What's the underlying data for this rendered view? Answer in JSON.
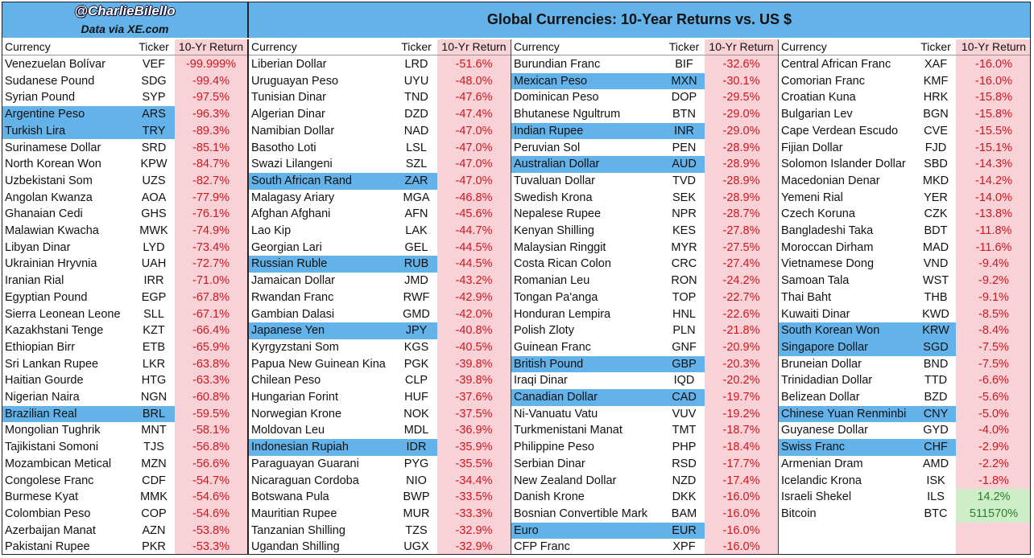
{
  "header": {
    "handle": "@CharlieBilello",
    "source": "Data via XE.com",
    "title": "Global Currencies: 10-Year Returns vs. US $"
  },
  "columns": {
    "currency": "Currency",
    "ticker": "Ticker",
    "return": "10-Yr Return"
  },
  "colors": {
    "highlight": "#63b3ea",
    "return_bg": "#f9d2d8",
    "positive_bg": "#cdeec6"
  },
  "groups": [
    {
      "rows": [
        {
          "currency": "Venezuelan Bolívar",
          "ticker": "VEF",
          "return": "-99.999%"
        },
        {
          "currency": "Sudanese Pound",
          "ticker": "SDG",
          "return": "-99.4%"
        },
        {
          "currency": "Syrian Pound",
          "ticker": "SYP",
          "return": "-97.5%"
        },
        {
          "currency": "Argentine Peso",
          "ticker": "ARS",
          "return": "-96.3%",
          "highlight": true
        },
        {
          "currency": "Turkish Lira",
          "ticker": "TRY",
          "return": "-89.3%",
          "highlight": true
        },
        {
          "currency": "Surinamese Dollar",
          "ticker": "SRD",
          "return": "-85.1%"
        },
        {
          "currency": "North Korean Won",
          "ticker": "KPW",
          "return": "-84.7%"
        },
        {
          "currency": "Uzbekistani Som",
          "ticker": "UZS",
          "return": "-82.7%"
        },
        {
          "currency": "Angolan Kwanza",
          "ticker": "AOA",
          "return": "-77.9%"
        },
        {
          "currency": "Ghanaian Cedi",
          "ticker": "GHS",
          "return": "-76.1%"
        },
        {
          "currency": "Malawian Kwacha",
          "ticker": "MWK",
          "return": "-74.9%"
        },
        {
          "currency": "Libyan Dinar",
          "ticker": "LYD",
          "return": "-73.4%"
        },
        {
          "currency": "Ukrainian Hryvnia",
          "ticker": "UAH",
          "return": "-72.7%"
        },
        {
          "currency": "Iranian Rial",
          "ticker": "IRR",
          "return": "-71.0%"
        },
        {
          "currency": "Egyptian Pound",
          "ticker": "EGP",
          "return": "-67.8%"
        },
        {
          "currency": "Sierra Leonean Leone",
          "ticker": "SLL",
          "return": "-67.1%"
        },
        {
          "currency": "Kazakhstani Tenge",
          "ticker": "KZT",
          "return": "-66.4%"
        },
        {
          "currency": "Ethiopian Birr",
          "ticker": "ETB",
          "return": "-65.9%"
        },
        {
          "currency": "Sri Lankan Rupee",
          "ticker": "LKR",
          "return": "-63.8%"
        },
        {
          "currency": "Haitian Gourde",
          "ticker": "HTG",
          "return": "-63.3%"
        },
        {
          "currency": "Nigerian Naira",
          "ticker": "NGN",
          "return": "-60.8%"
        },
        {
          "currency": "Brazilian Real",
          "ticker": "BRL",
          "return": "-59.5%",
          "highlight": true
        },
        {
          "currency": "Mongolian Tughrik",
          "ticker": "MNT",
          "return": "-58.1%"
        },
        {
          "currency": "Tajikistani Somoni",
          "ticker": "TJS",
          "return": "-56.8%"
        },
        {
          "currency": "Mozambican Metical",
          "ticker": "MZN",
          "return": "-56.6%"
        },
        {
          "currency": "Congolese Franc",
          "ticker": "CDF",
          "return": "-54.7%"
        },
        {
          "currency": "Burmese Kyat",
          "ticker": "MMK",
          "return": "-54.6%"
        },
        {
          "currency": "Colombian Peso",
          "ticker": "COP",
          "return": "-54.6%"
        },
        {
          "currency": "Azerbaijan Manat",
          "ticker": "AZN",
          "return": "-53.8%"
        },
        {
          "currency": "Pakistani Rupee",
          "ticker": "PKR",
          "return": "-53.3%"
        }
      ]
    },
    {
      "rows": [
        {
          "currency": "Liberian Dollar",
          "ticker": "LRD",
          "return": "-51.6%"
        },
        {
          "currency": "Uruguayan Peso",
          "ticker": "UYU",
          "return": "-48.0%"
        },
        {
          "currency": "Tunisian Dinar",
          "ticker": "TND",
          "return": "-47.6%"
        },
        {
          "currency": "Algerian Dinar",
          "ticker": "DZD",
          "return": "-47.4%"
        },
        {
          "currency": "Namibian Dollar",
          "ticker": "NAD",
          "return": "-47.0%"
        },
        {
          "currency": "Basotho Loti",
          "ticker": "LSL",
          "return": "-47.0%"
        },
        {
          "currency": "Swazi Lilangeni",
          "ticker": "SZL",
          "return": "-47.0%"
        },
        {
          "currency": "South African Rand",
          "ticker": "ZAR",
          "return": "-47.0%",
          "highlight": true
        },
        {
          "currency": "Malagasy Ariary",
          "ticker": "MGA",
          "return": "-46.8%"
        },
        {
          "currency": "Afghan Afghani",
          "ticker": "AFN",
          "return": "-45.6%"
        },
        {
          "currency": "Lao Kip",
          "ticker": "LAK",
          "return": "-44.7%"
        },
        {
          "currency": "Georgian Lari",
          "ticker": "GEL",
          "return": "-44.5%"
        },
        {
          "currency": "Russian Ruble",
          "ticker": "RUB",
          "return": "-44.5%",
          "highlight": true
        },
        {
          "currency": "Jamaican Dollar",
          "ticker": "JMD",
          "return": "-43.2%"
        },
        {
          "currency": "Rwandan Franc",
          "ticker": "RWF",
          "return": "-42.9%"
        },
        {
          "currency": "Gambian Dalasi",
          "ticker": "GMD",
          "return": "-42.0%"
        },
        {
          "currency": "Japanese Yen",
          "ticker": "JPY",
          "return": "-40.8%",
          "highlight": true
        },
        {
          "currency": "Kyrgyzstani Som",
          "ticker": "KGS",
          "return": "-40.5%"
        },
        {
          "currency": "Papua New Guinean Kina",
          "ticker": "PGK",
          "return": "-39.8%"
        },
        {
          "currency": "Chilean Peso",
          "ticker": "CLP",
          "return": "-39.8%"
        },
        {
          "currency": "Hungarian Forint",
          "ticker": "HUF",
          "return": "-37.6%"
        },
        {
          "currency": "Norwegian Krone",
          "ticker": "NOK",
          "return": "-37.5%"
        },
        {
          "currency": "Moldovan Leu",
          "ticker": "MDL",
          "return": "-36.9%"
        },
        {
          "currency": "Indonesian Rupiah",
          "ticker": "IDR",
          "return": "-35.9%",
          "highlight": true
        },
        {
          "currency": "Paraguayan Guarani",
          "ticker": "PYG",
          "return": "-35.5%"
        },
        {
          "currency": "Nicaraguan Cordoba",
          "ticker": "NIO",
          "return": "-34.4%"
        },
        {
          "currency": "Botswana Pula",
          "ticker": "BWP",
          "return": "-33.5%"
        },
        {
          "currency": "Mauritian Rupee",
          "ticker": "MUR",
          "return": "-33.3%"
        },
        {
          "currency": "Tanzanian Shilling",
          "ticker": "TZS",
          "return": "-32.9%"
        },
        {
          "currency": "Ugandan Shilling",
          "ticker": "UGX",
          "return": "-32.9%"
        }
      ]
    },
    {
      "rows": [
        {
          "currency": "Burundian Franc",
          "ticker": "BIF",
          "return": "-32.6%"
        },
        {
          "currency": "Mexican Peso",
          "ticker": "MXN",
          "return": "-30.1%",
          "highlight": true
        },
        {
          "currency": "Dominican Peso",
          "ticker": "DOP",
          "return": "-29.5%"
        },
        {
          "currency": "Bhutanese Ngultrum",
          "ticker": "BTN",
          "return": "-29.0%"
        },
        {
          "currency": "Indian Rupee",
          "ticker": "INR",
          "return": "-29.0%",
          "highlight": true
        },
        {
          "currency": "Peruvian Sol",
          "ticker": "PEN",
          "return": "-28.9%"
        },
        {
          "currency": "Australian Dollar",
          "ticker": "AUD",
          "return": "-28.9%",
          "highlight": true
        },
        {
          "currency": "Tuvaluan Dollar",
          "ticker": "TVD",
          "return": "-28.9%"
        },
        {
          "currency": "Swedish Krona",
          "ticker": "SEK",
          "return": "-28.9%"
        },
        {
          "currency": "Nepalese Rupee",
          "ticker": "NPR",
          "return": "-28.7%"
        },
        {
          "currency": "Kenyan Shilling",
          "ticker": "KES",
          "return": "-27.8%"
        },
        {
          "currency": "Malaysian Ringgit",
          "ticker": "MYR",
          "return": "-27.5%"
        },
        {
          "currency": "Costa Rican Colon",
          "ticker": "CRC",
          "return": "-27.4%"
        },
        {
          "currency": "Romanian Leu",
          "ticker": "RON",
          "return": "-24.2%"
        },
        {
          "currency": "Tongan Pa'anga",
          "ticker": "TOP",
          "return": "-22.7%"
        },
        {
          "currency": "Honduran Lempira",
          "ticker": "HNL",
          "return": "-22.6%"
        },
        {
          "currency": "Polish Zloty",
          "ticker": "PLN",
          "return": "-21.8%"
        },
        {
          "currency": "Guinean Franc",
          "ticker": "GNF",
          "return": "-20.9%"
        },
        {
          "currency": "British Pound",
          "ticker": "GBP",
          "return": "-20.3%",
          "highlight": true
        },
        {
          "currency": "Iraqi Dinar",
          "ticker": "IQD",
          "return": "-20.2%"
        },
        {
          "currency": "Canadian Dollar",
          "ticker": "CAD",
          "return": "-19.7%",
          "highlight": true
        },
        {
          "currency": "Ni-Vanuatu Vatu",
          "ticker": "VUV",
          "return": "-19.2%"
        },
        {
          "currency": "Turkmenistani Manat",
          "ticker": "TMT",
          "return": "-18.7%"
        },
        {
          "currency": "Philippine Peso",
          "ticker": "PHP",
          "return": "-18.4%"
        },
        {
          "currency": "Serbian Dinar",
          "ticker": "RSD",
          "return": "-17.7%"
        },
        {
          "currency": "New Zealand Dollar",
          "ticker": "NZD",
          "return": "-17.4%"
        },
        {
          "currency": "Danish Krone",
          "ticker": "DKK",
          "return": "-16.0%"
        },
        {
          "currency": "Bosnian Convertible Mark",
          "ticker": "BAM",
          "return": "-16.0%"
        },
        {
          "currency": "Euro",
          "ticker": "EUR",
          "return": "-16.0%",
          "highlight": true
        },
        {
          "currency": "CFP Franc",
          "ticker": "XPF",
          "return": "-16.0%"
        }
      ]
    },
    {
      "rows": [
        {
          "currency": "Central African Franc",
          "ticker": "XAF",
          "return": "-16.0%"
        },
        {
          "currency": "Comorian Franc",
          "ticker": "KMF",
          "return": "-16.0%"
        },
        {
          "currency": "Croatian Kuna",
          "ticker": "HRK",
          "return": "-15.8%"
        },
        {
          "currency": "Bulgarian Lev",
          "ticker": "BGN",
          "return": "-15.8%"
        },
        {
          "currency": "Cape Verdean Escudo",
          "ticker": "CVE",
          "return": "-15.5%"
        },
        {
          "currency": "Fijian Dollar",
          "ticker": "FJD",
          "return": "-15.1%"
        },
        {
          "currency": "Solomon Islander Dollar",
          "ticker": "SBD",
          "return": "-14.3%"
        },
        {
          "currency": "Macedonian Denar",
          "ticker": "MKD",
          "return": "-14.2%"
        },
        {
          "currency": "Yemeni Rial",
          "ticker": "YER",
          "return": "-14.0%"
        },
        {
          "currency": "Czech Koruna",
          "ticker": "CZK",
          "return": "-13.8%"
        },
        {
          "currency": "Bangladeshi Taka",
          "ticker": "BDT",
          "return": "-11.8%"
        },
        {
          "currency": "Moroccan Dirham",
          "ticker": "MAD",
          "return": "-11.6%"
        },
        {
          "currency": "Vietnamese Dong",
          "ticker": "VND",
          "return": "-9.4%"
        },
        {
          "currency": "Samoan Tala",
          "ticker": "WST",
          "return": "-9.2%"
        },
        {
          "currency": "Thai Baht",
          "ticker": "THB",
          "return": "-9.1%"
        },
        {
          "currency": "Kuwaiti Dinar",
          "ticker": "KWD",
          "return": "-8.5%"
        },
        {
          "currency": "South Korean Won",
          "ticker": "KRW",
          "return": "-8.4%",
          "highlight": true
        },
        {
          "currency": "Singapore Dollar",
          "ticker": "SGD",
          "return": "-7.5%",
          "highlight": true
        },
        {
          "currency": "Bruneian Dollar",
          "ticker": "BND",
          "return": "-7.5%"
        },
        {
          "currency": "Trinidadian Dollar",
          "ticker": "TTD",
          "return": "-6.6%"
        },
        {
          "currency": "Belizean Dollar",
          "ticker": "BZD",
          "return": "-5.6%"
        },
        {
          "currency": "Chinese Yuan Renminbi",
          "ticker": "CNY",
          "return": "-5.0%",
          "highlight": true
        },
        {
          "currency": "Guyanese Dollar",
          "ticker": "GYD",
          "return": "-4.0%"
        },
        {
          "currency": "Swiss Franc",
          "ticker": "CHF",
          "return": "-2.9%",
          "highlight": true
        },
        {
          "currency": "Armenian Dram",
          "ticker": "AMD",
          "return": "-2.2%"
        },
        {
          "currency": "Icelandic Krona",
          "ticker": "ISK",
          "return": "-1.8%"
        },
        {
          "currency": "Israeli Shekel",
          "ticker": "ILS",
          "return": "14.2%",
          "positive": true
        },
        {
          "currency": "Bitcoin",
          "ticker": "BTC",
          "return": "511570%",
          "positive": true
        }
      ]
    }
  ]
}
